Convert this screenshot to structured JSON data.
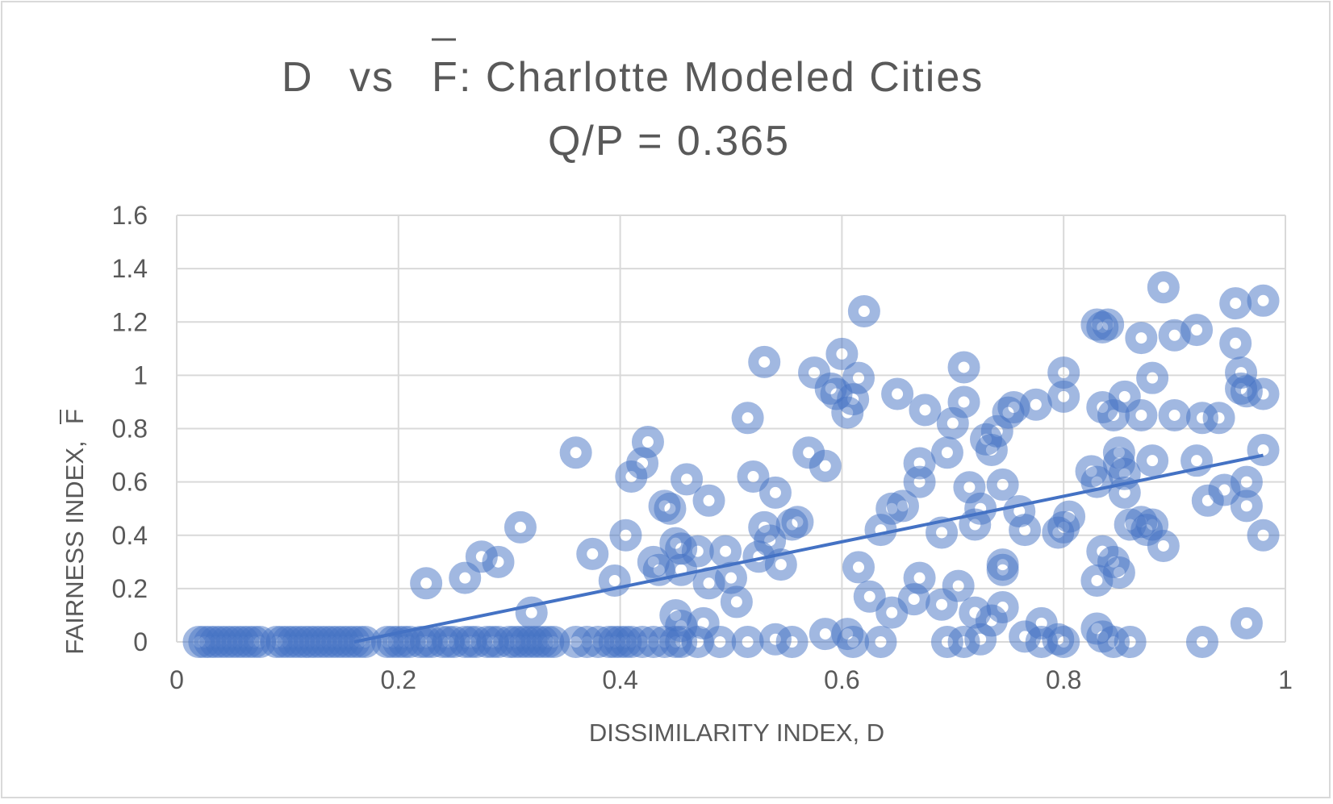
{
  "chart_data": {
    "type": "scatter",
    "title": {
      "line1_part1": "D",
      "line1_vs": "vs",
      "line1_fbar": "F",
      "line1_rest": ": Charlotte Modeled Cities",
      "line2": "Q/P = 0.365"
    },
    "xlabel": "DISSIMILARITY INDEX, D",
    "ylabel": "FAIRNESS INDEX,",
    "ylabel_symbol": "F",
    "xlim": [
      0,
      1
    ],
    "ylim": [
      0,
      1.6
    ],
    "x_ticks": [
      "0",
      "0.2",
      "0.4",
      "0.6",
      "0.8",
      "1"
    ],
    "y_ticks": [
      "0",
      "0.2",
      "0.4",
      "0.6",
      "0.8",
      "1",
      "1.2",
      "1.4",
      "1.6"
    ],
    "grid": true,
    "legend": "none",
    "marker": "hollow-circle",
    "color": "#4472c4",
    "trendline": {
      "type": "linear",
      "x": [
        0.16,
        0.98
      ],
      "y": [
        0.0,
        0.7
      ]
    },
    "points": [
      [
        0.02,
        0
      ],
      [
        0.025,
        0
      ],
      [
        0.03,
        0
      ],
      [
        0.035,
        0
      ],
      [
        0.04,
        0
      ],
      [
        0.045,
        0
      ],
      [
        0.05,
        0
      ],
      [
        0.055,
        0
      ],
      [
        0.06,
        0
      ],
      [
        0.065,
        0
      ],
      [
        0.07,
        0
      ],
      [
        0.075,
        0
      ],
      [
        0.09,
        0
      ],
      [
        0.095,
        0
      ],
      [
        0.1,
        0
      ],
      [
        0.105,
        0
      ],
      [
        0.11,
        0
      ],
      [
        0.115,
        0
      ],
      [
        0.12,
        0
      ],
      [
        0.125,
        0
      ],
      [
        0.13,
        0
      ],
      [
        0.135,
        0
      ],
      [
        0.14,
        0
      ],
      [
        0.145,
        0
      ],
      [
        0.15,
        0
      ],
      [
        0.155,
        0
      ],
      [
        0.16,
        0
      ],
      [
        0.165,
        0
      ],
      [
        0.17,
        0
      ],
      [
        0.19,
        0
      ],
      [
        0.195,
        0
      ],
      [
        0.2,
        0
      ],
      [
        0.205,
        0
      ],
      [
        0.21,
        0
      ],
      [
        0.22,
        0
      ],
      [
        0.225,
        0
      ],
      [
        0.23,
        0
      ],
      [
        0.24,
        0
      ],
      [
        0.245,
        0
      ],
      [
        0.25,
        0
      ],
      [
        0.26,
        0
      ],
      [
        0.265,
        0
      ],
      [
        0.27,
        0
      ],
      [
        0.28,
        0
      ],
      [
        0.285,
        0
      ],
      [
        0.29,
        0
      ],
      [
        0.3,
        0
      ],
      [
        0.305,
        0
      ],
      [
        0.31,
        0
      ],
      [
        0.315,
        0
      ],
      [
        0.32,
        0
      ],
      [
        0.325,
        0
      ],
      [
        0.33,
        0
      ],
      [
        0.335,
        0
      ],
      [
        0.34,
        0
      ],
      [
        0.36,
        0
      ],
      [
        0.37,
        0
      ],
      [
        0.38,
        0
      ],
      [
        0.39,
        0
      ],
      [
        0.395,
        0
      ],
      [
        0.4,
        0
      ],
      [
        0.405,
        0
      ],
      [
        0.41,
        0
      ],
      [
        0.42,
        0
      ],
      [
        0.43,
        0
      ],
      [
        0.44,
        0
      ],
      [
        0.45,
        0
      ],
      [
        0.455,
        0
      ],
      [
        0.47,
        0
      ],
      [
        0.49,
        0
      ],
      [
        0.515,
        0
      ],
      [
        0.54,
        0.01
      ],
      [
        0.555,
        0
      ],
      [
        0.585,
        0.03
      ],
      [
        0.605,
        0.03
      ],
      [
        0.61,
        0
      ],
      [
        0.635,
        0
      ],
      [
        0.695,
        0
      ],
      [
        0.71,
        0
      ],
      [
        0.725,
        0.01
      ],
      [
        0.765,
        0.02
      ],
      [
        0.78,
        0
      ],
      [
        0.795,
        0.01
      ],
      [
        0.8,
        0
      ],
      [
        0.835,
        0.02
      ],
      [
        0.845,
        0
      ],
      [
        0.86,
        0
      ],
      [
        0.925,
        0
      ],
      [
        0.225,
        0.22
      ],
      [
        0.26,
        0.24
      ],
      [
        0.275,
        0.32
      ],
      [
        0.29,
        0.3
      ],
      [
        0.31,
        0.43
      ],
      [
        0.32,
        0.11
      ],
      [
        0.36,
        0.71
      ],
      [
        0.375,
        0.33
      ],
      [
        0.395,
        0.23
      ],
      [
        0.405,
        0.4
      ],
      [
        0.41,
        0.62
      ],
      [
        0.42,
        0.67
      ],
      [
        0.425,
        0.75
      ],
      [
        0.43,
        0.3
      ],
      [
        0.435,
        0.27
      ],
      [
        0.44,
        0.51
      ],
      [
        0.445,
        0.5
      ],
      [
        0.45,
        0.37
      ],
      [
        0.455,
        0.35
      ],
      [
        0.45,
        0.1
      ],
      [
        0.455,
        0.06
      ],
      [
        0.46,
        0.61
      ],
      [
        0.455,
        0.27
      ],
      [
        0.47,
        0.34
      ],
      [
        0.475,
        0.07
      ],
      [
        0.48,
        0.53
      ],
      [
        0.48,
        0.22
      ],
      [
        0.495,
        0.34
      ],
      [
        0.5,
        0.24
      ],
      [
        0.505,
        0.15
      ],
      [
        0.515,
        0.84
      ],
      [
        0.52,
        0.62
      ],
      [
        0.525,
        0.32
      ],
      [
        0.53,
        1.05
      ],
      [
        0.53,
        0.43
      ],
      [
        0.535,
        0.38
      ],
      [
        0.54,
        0.56
      ],
      [
        0.545,
        0.29
      ],
      [
        0.555,
        0.44
      ],
      [
        0.56,
        0.45
      ],
      [
        0.57,
        0.71
      ],
      [
        0.575,
        1.01
      ],
      [
        0.585,
        0.66
      ],
      [
        0.59,
        0.95
      ],
      [
        0.595,
        0.93
      ],
      [
        0.6,
        1.08
      ],
      [
        0.605,
        0.86
      ],
      [
        0.61,
        0.91
      ],
      [
        0.615,
        0.99
      ],
      [
        0.615,
        0.28
      ],
      [
        0.62,
        1.24
      ],
      [
        0.625,
        0.17
      ],
      [
        0.635,
        0.42
      ],
      [
        0.645,
        0.11
      ],
      [
        0.645,
        0.5
      ],
      [
        0.65,
        0.93
      ],
      [
        0.655,
        0.51
      ],
      [
        0.67,
        0.67
      ],
      [
        0.67,
        0.6
      ],
      [
        0.67,
        0.24
      ],
      [
        0.665,
        0.16
      ],
      [
        0.675,
        0.87
      ],
      [
        0.69,
        0.14
      ],
      [
        0.69,
        0.41
      ],
      [
        0.695,
        0.71
      ],
      [
        0.7,
        0.82
      ],
      [
        0.705,
        0.21
      ],
      [
        0.71,
        0.9
      ],
      [
        0.71,
        1.03
      ],
      [
        0.715,
        0.58
      ],
      [
        0.72,
        0.44
      ],
      [
        0.72,
        0.11
      ],
      [
        0.725,
        0.5
      ],
      [
        0.73,
        0.76
      ],
      [
        0.735,
        0.72
      ],
      [
        0.735,
        0.08
      ],
      [
        0.74,
        0.79
      ],
      [
        0.745,
        0.59
      ],
      [
        0.745,
        0.29
      ],
      [
        0.745,
        0.27
      ],
      [
        0.745,
        0.13
      ],
      [
        0.75,
        0.86
      ],
      [
        0.755,
        0.88
      ],
      [
        0.76,
        0.49
      ],
      [
        0.765,
        0.42
      ],
      [
        0.775,
        0.89
      ],
      [
        0.78,
        0.07
      ],
      [
        0.795,
        0.41
      ],
      [
        0.8,
        0.43
      ],
      [
        0.8,
        0.92
      ],
      [
        0.8,
        1.01
      ],
      [
        0.805,
        0.47
      ],
      [
        0.825,
        0.64
      ],
      [
        0.83,
        0.6
      ],
      [
        0.83,
        0.23
      ],
      [
        0.83,
        0.05
      ],
      [
        0.83,
        1.19
      ],
      [
        0.835,
        1.18
      ],
      [
        0.835,
        0.88
      ],
      [
        0.835,
        0.34
      ],
      [
        0.84,
        1.19
      ],
      [
        0.845,
        0.85
      ],
      [
        0.845,
        0.3
      ],
      [
        0.85,
        0.26
      ],
      [
        0.85,
        0.71
      ],
      [
        0.85,
        0.67
      ],
      [
        0.855,
        0.92
      ],
      [
        0.855,
        0.56
      ],
      [
        0.855,
        0.63
      ],
      [
        0.86,
        0.44
      ],
      [
        0.87,
        1.14
      ],
      [
        0.87,
        0.85
      ],
      [
        0.87,
        0.45
      ],
      [
        0.875,
        0.42
      ],
      [
        0.88,
        0.99
      ],
      [
        0.88,
        0.68
      ],
      [
        0.88,
        0.44
      ],
      [
        0.89,
        0.36
      ],
      [
        0.89,
        1.33
      ],
      [
        0.9,
        1.15
      ],
      [
        0.9,
        0.85
      ],
      [
        0.92,
        1.17
      ],
      [
        0.92,
        0.68
      ],
      [
        0.925,
        0.84
      ],
      [
        0.93,
        0.53
      ],
      [
        0.94,
        0.84
      ],
      [
        0.945,
        0.57
      ],
      [
        0.955,
        1.12
      ],
      [
        0.955,
        1.27
      ],
      [
        0.96,
        1.01
      ],
      [
        0.96,
        0.95
      ],
      [
        0.965,
        0.94
      ],
      [
        0.965,
        0.51
      ],
      [
        0.965,
        0.6
      ],
      [
        0.965,
        0.07
      ],
      [
        0.98,
        1.28
      ],
      [
        0.98,
        0.93
      ],
      [
        0.98,
        0.72
      ],
      [
        0.98,
        0.4
      ]
    ]
  }
}
